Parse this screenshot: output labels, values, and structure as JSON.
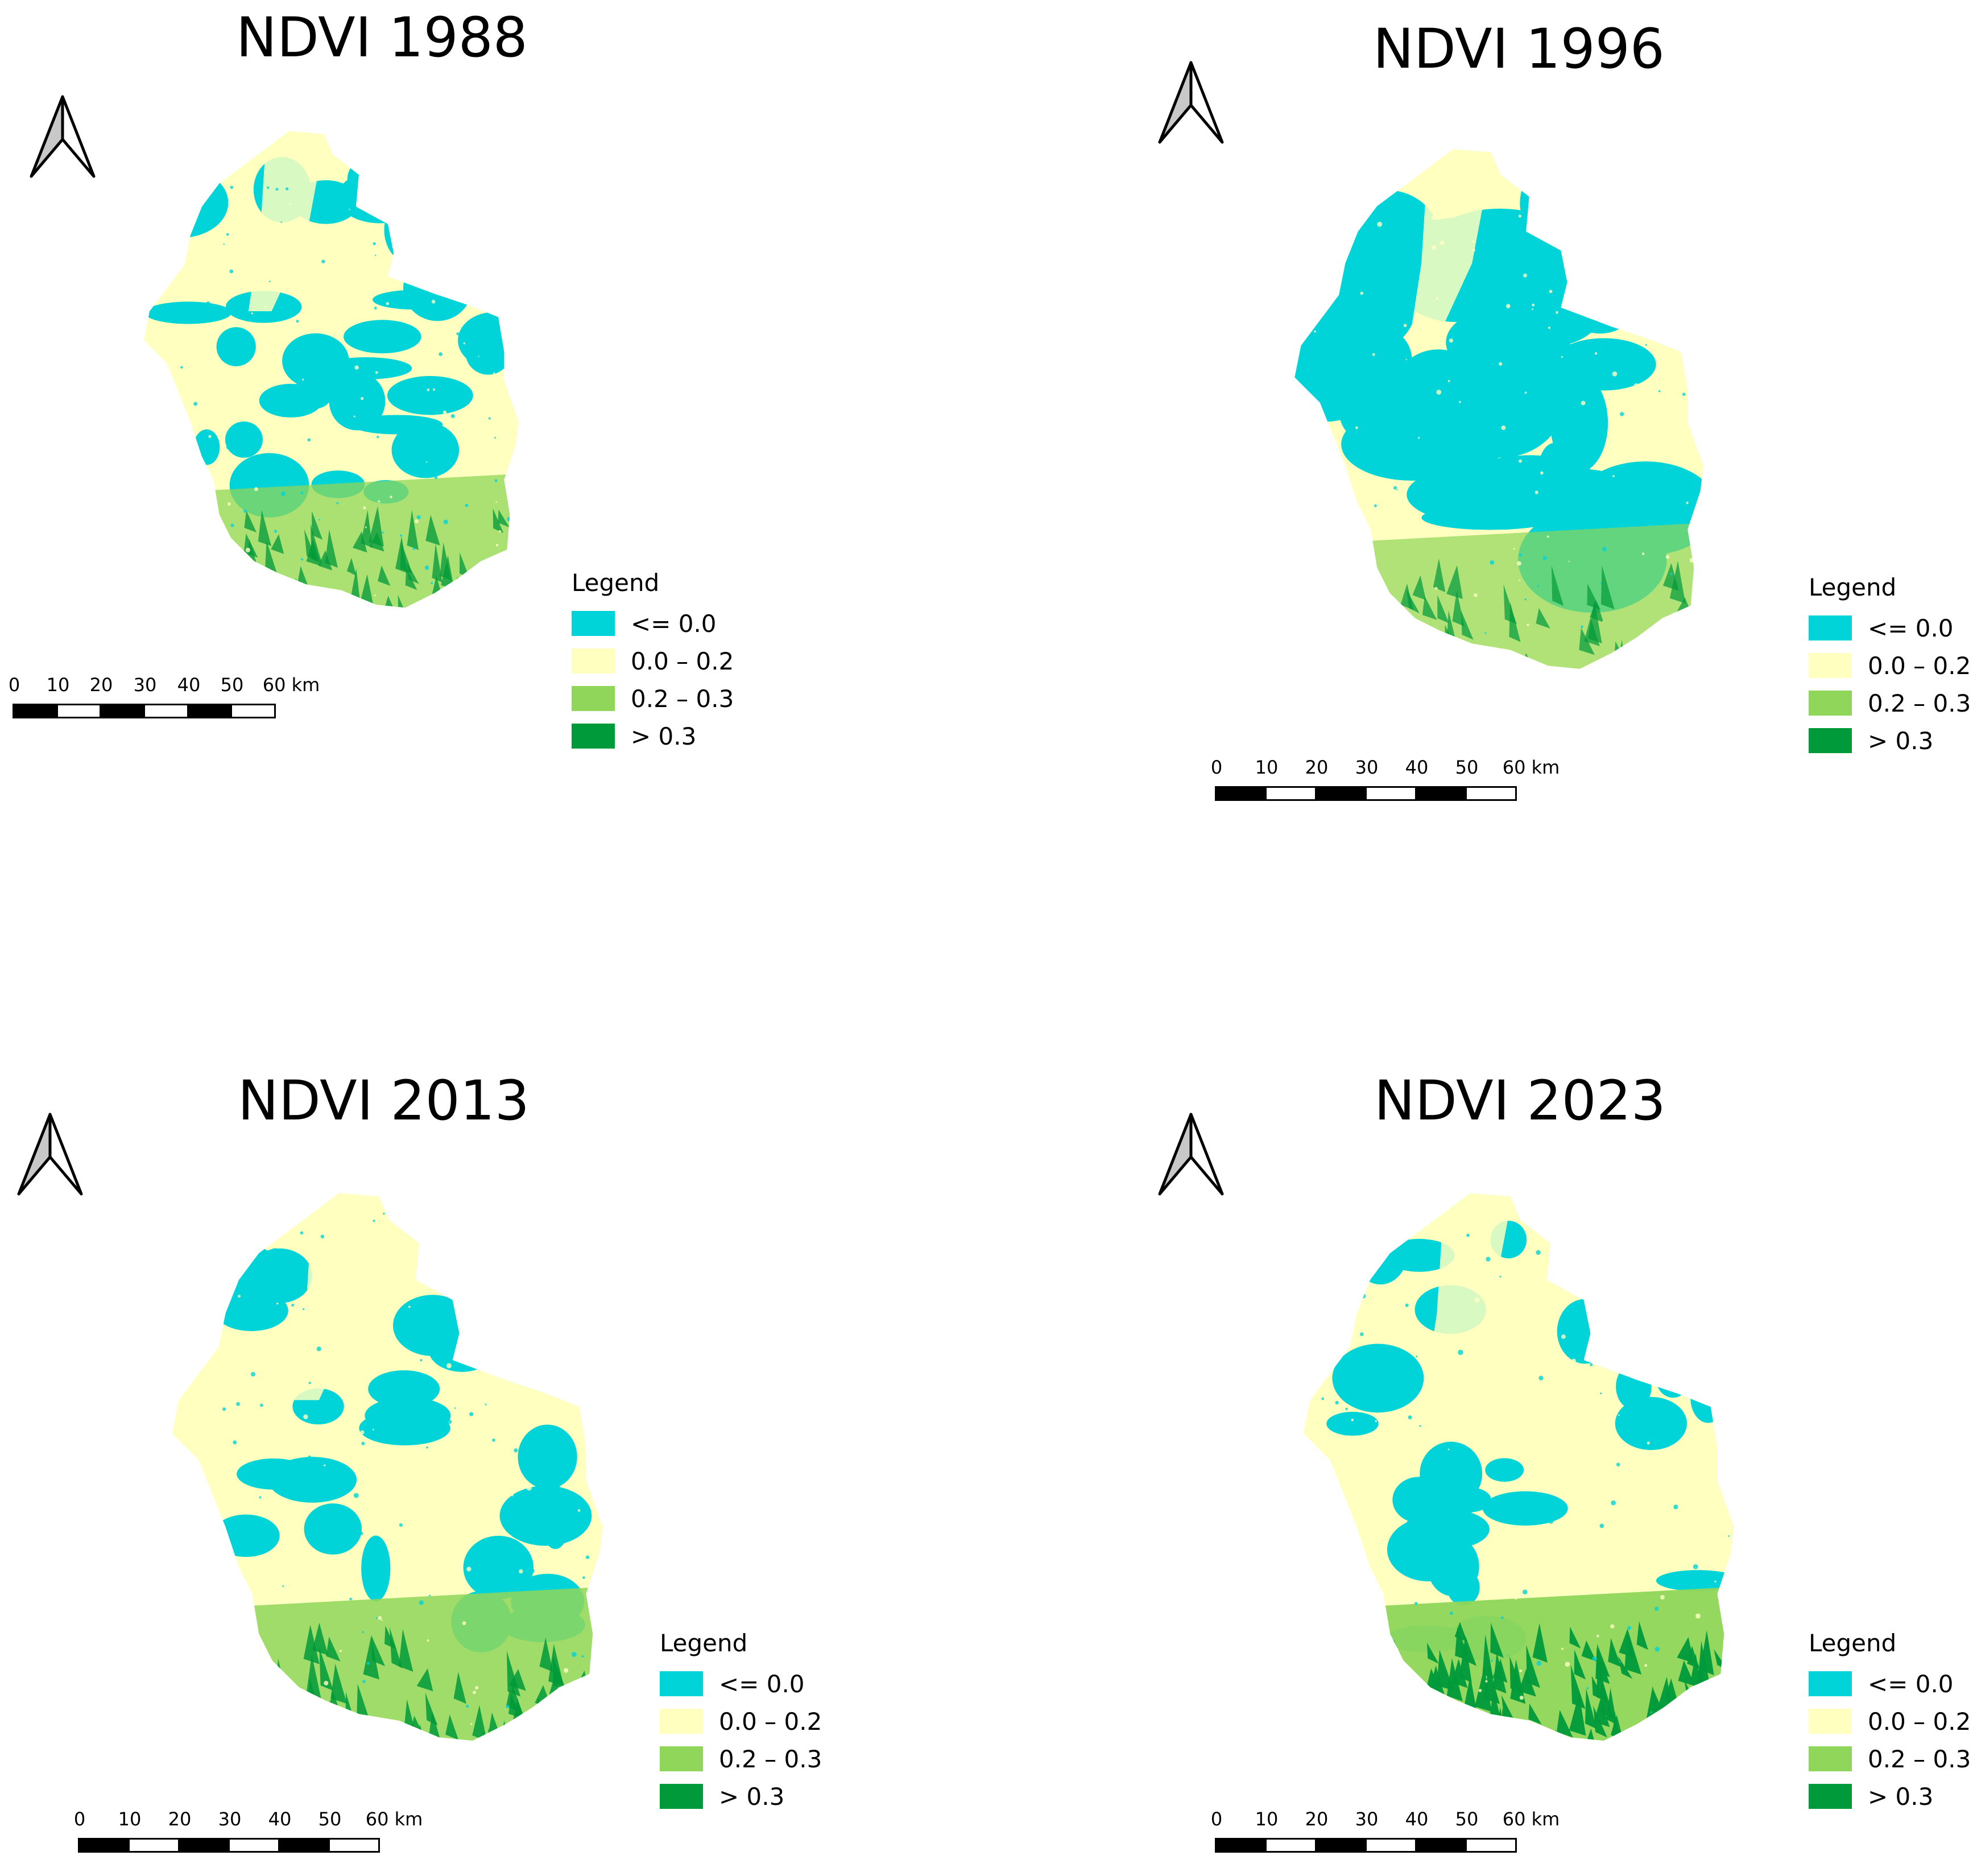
{
  "legend_title": "Legend",
  "legend_items": [
    {
      "label": "<= 0.0",
      "color": "#00d4d8"
    },
    {
      "label": "0.0 – 0.2",
      "color": "#ffffc0"
    },
    {
      "label": "0.2 – 0.3",
      "color": "#8fd65a"
    },
    {
      "label": "> 0.3",
      "color": "#009a3a"
    }
  ],
  "scale_ticks": [
    "0",
    "10",
    "20",
    "30",
    "40",
    "50",
    "60 km"
  ],
  "north_icon": "north-arrow-icon",
  "maps": [
    {
      "title": "NDVI 1988",
      "water_fraction": 0.45,
      "south_green": 0.5
    },
    {
      "title": "NDVI 1996",
      "water_fraction": 0.7,
      "south_green": 0.4
    },
    {
      "title": "NDVI 2013",
      "water_fraction": 0.35,
      "south_green": 0.7
    },
    {
      "title": "NDVI 2023",
      "water_fraction": 0.35,
      "south_green": 0.9
    }
  ]
}
